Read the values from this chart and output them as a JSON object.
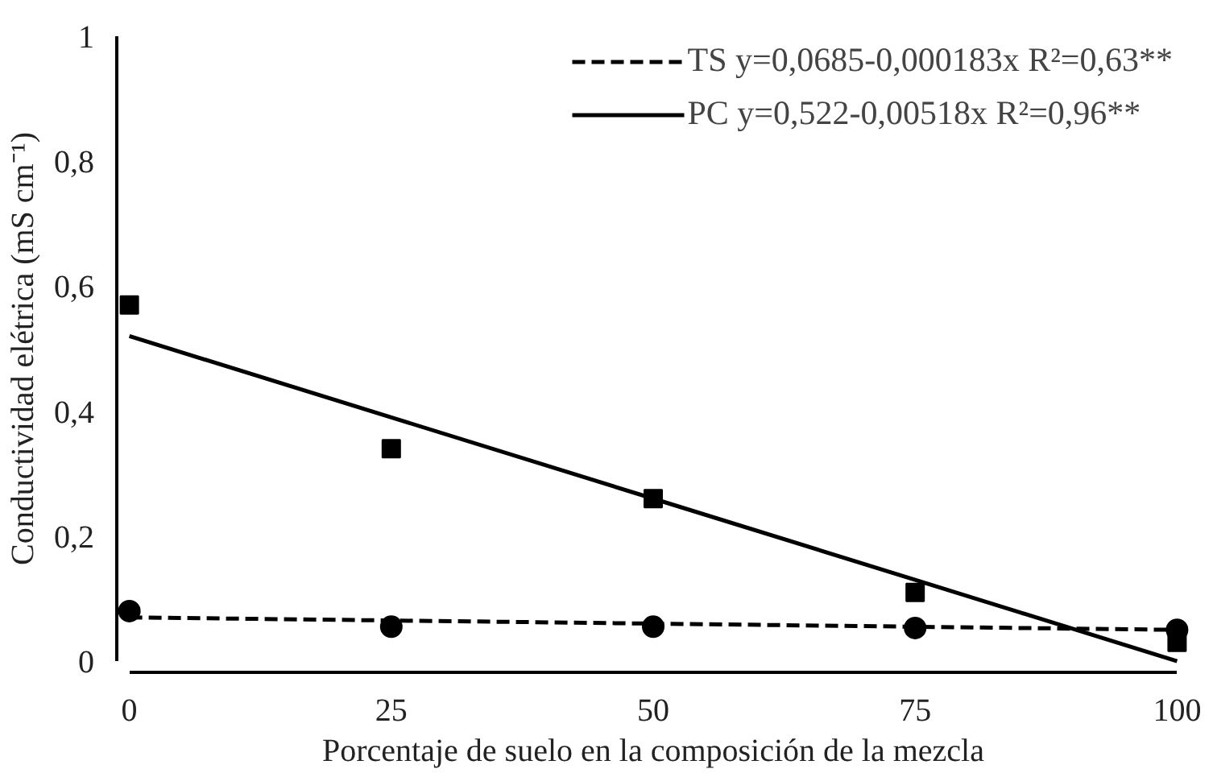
{
  "chart_data": {
    "type": "scatter",
    "xlabel": "Porcentaje de suelo en la composición de la mezcla",
    "ylabel": "Conductividad elétrica (mS cm⁻¹)",
    "x": [
      0,
      25,
      50,
      75,
      100
    ],
    "series": [
      {
        "marker": "circle",
        "color": "#000000",
        "values": [
          0.08,
          0.055,
          0.055,
          0.053,
          0.05
        ]
      },
      {
        "marker": "square",
        "color": "#000000",
        "values": [
          0.57,
          0.34,
          0.26,
          0.11,
          0.03
        ]
      },
      {
        "type": "line",
        "name": "TS y=0,0685-0,000183x R²=0,63**",
        "line_style": "dashed",
        "color": "#000000",
        "values": [
          0.07,
          0.065,
          0.06,
          0.055,
          0.05
        ]
      },
      {
        "type": "line",
        "name": "PC y=0,522-0,00518x R²=0,96**",
        "line_style": "solid",
        "color": "#000000",
        "values": [
          0.52,
          0.39,
          0.26,
          0.13,
          0.0
        ]
      }
    ],
    "xlim": [
      0,
      100
    ],
    "ylim": [
      0,
      1
    ],
    "xticks": [
      0,
      25,
      50,
      75,
      100
    ],
    "yticks": [
      0,
      {
        "value": 0.2,
        "label": "0,2"
      },
      {
        "value": 0.4,
        "label": "0,4"
      },
      {
        "value": 0.6,
        "label": "0,6"
      },
      {
        "value": 0.8,
        "label": "0,8"
      },
      1
    ],
    "grid": false,
    "legend": "top right"
  }
}
